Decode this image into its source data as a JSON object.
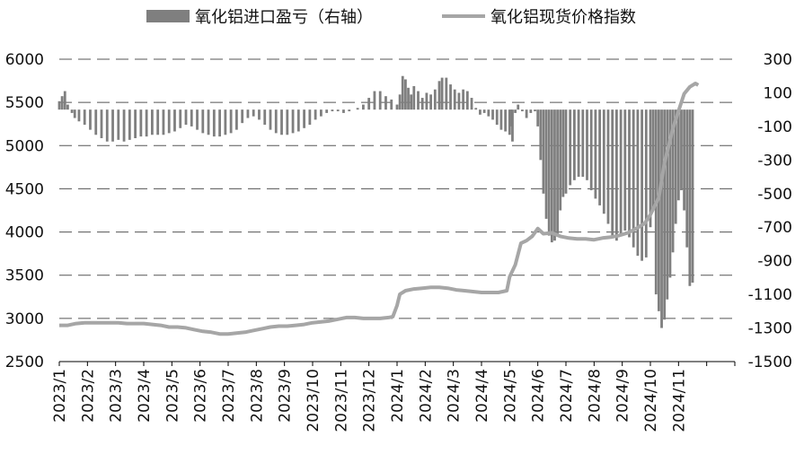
{
  "chart_data": {
    "type": "bar+line",
    "title": "",
    "legend": {
      "placement": "top",
      "items": [
        {
          "label": "氧化铝进口盈亏（右轴）",
          "marker": "bar",
          "color": "#7f7f7f"
        },
        {
          "label": "氧化铝现货价格指数",
          "marker": "line",
          "color": "#a6a6a6"
        }
      ]
    },
    "x_tick_labels": [
      "2023/1",
      "2023/2",
      "2023/3",
      "2023/4",
      "2023/5",
      "2023/6",
      "2023/7",
      "2023/8",
      "2023/9",
      "2023/10",
      "2023/11",
      "2023/12",
      "2024/1",
      "2024/2",
      "2024/3",
      "2024/4",
      "2024/5",
      "2024/6",
      "2024/7",
      "2024/8",
      "2024/9",
      "2024/10",
      "2024/11"
    ],
    "x_range": [
      "2023/1",
      "2024/12"
    ],
    "left_axis": {
      "min": 2500,
      "max": 6000,
      "ticks": [
        "2500",
        "3000",
        "3500",
        "4000",
        "4500",
        "5000",
        "5500",
        "6000"
      ]
    },
    "right_axis": {
      "min": -1500,
      "max": 300,
      "ticks": [
        "-1500",
        "-1300",
        "-1100",
        "-900",
        "-700",
        "-500",
        "-300",
        "-100",
        "100",
        "300"
      ]
    },
    "grid": "horizontal dashed",
    "series": [
      {
        "name": "氧化铝进口盈亏（右轴）",
        "type": "bar",
        "axis": "right",
        "color": "#7f7f7f",
        "points": [
          [
            0.0,
            50
          ],
          [
            0.1,
            80
          ],
          [
            0.2,
            110
          ],
          [
            0.3,
            30
          ],
          [
            0.45,
            -20
          ],
          [
            0.55,
            -50
          ],
          [
            0.7,
            -70
          ],
          [
            0.9,
            -90
          ],
          [
            1.1,
            -120
          ],
          [
            1.3,
            -150
          ],
          [
            1.5,
            -170
          ],
          [
            1.7,
            -190
          ],
          [
            1.9,
            -190
          ],
          [
            2.1,
            -180
          ],
          [
            2.3,
            -190
          ],
          [
            2.5,
            -180
          ],
          [
            2.7,
            -170
          ],
          [
            2.9,
            -160
          ],
          [
            3.1,
            -160
          ],
          [
            3.3,
            -150
          ],
          [
            3.5,
            -150
          ],
          [
            3.7,
            -150
          ],
          [
            3.9,
            -140
          ],
          [
            4.1,
            -130
          ],
          [
            4.3,
            -110
          ],
          [
            4.5,
            -90
          ],
          [
            4.7,
            -100
          ],
          [
            4.9,
            -120
          ],
          [
            5.1,
            -140
          ],
          [
            5.3,
            -150
          ],
          [
            5.5,
            -160
          ],
          [
            5.7,
            -160
          ],
          [
            5.9,
            -150
          ],
          [
            6.1,
            -140
          ],
          [
            6.3,
            -120
          ],
          [
            6.5,
            -80
          ],
          [
            6.7,
            -50
          ],
          [
            6.9,
            -40
          ],
          [
            7.1,
            -60
          ],
          [
            7.3,
            -90
          ],
          [
            7.5,
            -120
          ],
          [
            7.7,
            -140
          ],
          [
            7.9,
            -150
          ],
          [
            8.1,
            -150
          ],
          [
            8.3,
            -140
          ],
          [
            8.5,
            -130
          ],
          [
            8.7,
            -110
          ],
          [
            8.9,
            -90
          ],
          [
            9.1,
            -60
          ],
          [
            9.3,
            -40
          ],
          [
            9.5,
            -20
          ],
          [
            9.7,
            -10
          ],
          [
            9.9,
            -10
          ],
          [
            10.1,
            -20
          ],
          [
            10.3,
            -10
          ],
          [
            10.6,
            10
          ],
          [
            10.8,
            30
          ],
          [
            11.0,
            70
          ],
          [
            11.2,
            110
          ],
          [
            11.4,
            110
          ],
          [
            11.6,
            80
          ],
          [
            11.8,
            60
          ],
          [
            12.0,
            30
          ],
          [
            12.1,
            90
          ],
          [
            12.2,
            200
          ],
          [
            12.3,
            180
          ],
          [
            12.4,
            130
          ],
          [
            12.5,
            90
          ],
          [
            12.6,
            140
          ],
          [
            12.75,
            110
          ],
          [
            12.9,
            70
          ],
          [
            13.05,
            100
          ],
          [
            13.2,
            90
          ],
          [
            13.35,
            120
          ],
          [
            13.5,
            170
          ],
          [
            13.6,
            190
          ],
          [
            13.75,
            190
          ],
          [
            13.9,
            150
          ],
          [
            14.05,
            120
          ],
          [
            14.2,
            100
          ],
          [
            14.35,
            120
          ],
          [
            14.5,
            110
          ],
          [
            14.65,
            70
          ],
          [
            14.8,
            10
          ],
          [
            14.95,
            -30
          ],
          [
            15.1,
            -20
          ],
          [
            15.25,
            -40
          ],
          [
            15.4,
            -60
          ],
          [
            15.55,
            -90
          ],
          [
            15.7,
            -120
          ],
          [
            15.85,
            -130
          ],
          [
            16.0,
            -150
          ],
          [
            16.05,
            -100
          ],
          [
            16.1,
            -190
          ],
          [
            16.2,
            -20
          ],
          [
            16.3,
            30
          ],
          [
            16.45,
            -10
          ],
          [
            16.6,
            -50
          ],
          [
            16.75,
            -20
          ],
          [
            16.9,
            -10
          ],
          [
            17.0,
            -100
          ],
          [
            17.1,
            -300
          ],
          [
            17.2,
            -500
          ],
          [
            17.3,
            -650
          ],
          [
            17.4,
            -750
          ],
          [
            17.5,
            -790
          ],
          [
            17.6,
            -780
          ],
          [
            17.7,
            -750
          ],
          [
            17.8,
            -600
          ],
          [
            17.9,
            -520
          ],
          [
            18.0,
            -500
          ],
          [
            18.15,
            -450
          ],
          [
            18.3,
            -420
          ],
          [
            18.45,
            -400
          ],
          [
            18.6,
            -400
          ],
          [
            18.75,
            -420
          ],
          [
            18.9,
            -480
          ],
          [
            19.05,
            -530
          ],
          [
            19.2,
            -570
          ],
          [
            19.35,
            -620
          ],
          [
            19.5,
            -680
          ],
          [
            19.65,
            -760
          ],
          [
            19.8,
            -780
          ],
          [
            19.95,
            -740
          ],
          [
            20.1,
            -720
          ],
          [
            20.25,
            -760
          ],
          [
            20.4,
            -820
          ],
          [
            20.55,
            -870
          ],
          [
            20.7,
            -900
          ],
          [
            20.85,
            -880
          ],
          [
            21.0,
            -700
          ],
          [
            21.1,
            -600
          ],
          [
            21.2,
            -1100
          ],
          [
            21.3,
            -1200
          ],
          [
            21.4,
            -1300
          ],
          [
            21.5,
            -1250
          ],
          [
            21.6,
            -1130
          ],
          [
            21.7,
            -1000
          ],
          [
            21.8,
            -850
          ],
          [
            21.9,
            -680
          ],
          [
            22.0,
            -540
          ],
          [
            22.1,
            -480
          ],
          [
            22.2,
            -600
          ],
          [
            22.3,
            -820
          ],
          [
            22.4,
            -1050
          ],
          [
            22.5,
            -1030
          ]
        ]
      },
      {
        "name": "氧化铝现货价格指数",
        "type": "line",
        "axis": "left",
        "color": "#a6a6a6",
        "points": [
          [
            0.0,
            2920
          ],
          [
            0.3,
            2920
          ],
          [
            0.6,
            2940
          ],
          [
            0.9,
            2950
          ],
          [
            1.2,
            2950
          ],
          [
            1.5,
            2950
          ],
          [
            1.8,
            2950
          ],
          [
            2.1,
            2950
          ],
          [
            2.4,
            2940
          ],
          [
            2.7,
            2940
          ],
          [
            3.0,
            2940
          ],
          [
            3.3,
            2930
          ],
          [
            3.6,
            2920
          ],
          [
            3.9,
            2900
          ],
          [
            4.2,
            2900
          ],
          [
            4.5,
            2890
          ],
          [
            4.8,
            2870
          ],
          [
            5.1,
            2850
          ],
          [
            5.4,
            2840
          ],
          [
            5.7,
            2820
          ],
          [
            6.0,
            2820
          ],
          [
            6.3,
            2830
          ],
          [
            6.6,
            2840
          ],
          [
            6.9,
            2860
          ],
          [
            7.2,
            2880
          ],
          [
            7.5,
            2900
          ],
          [
            7.8,
            2910
          ],
          [
            8.1,
            2910
          ],
          [
            8.4,
            2920
          ],
          [
            8.7,
            2930
          ],
          [
            9.0,
            2950
          ],
          [
            9.3,
            2960
          ],
          [
            9.6,
            2970
          ],
          [
            9.9,
            2990
          ],
          [
            10.2,
            3010
          ],
          [
            10.5,
            3010
          ],
          [
            10.8,
            3000
          ],
          [
            11.1,
            3000
          ],
          [
            11.4,
            3000
          ],
          [
            11.7,
            3010
          ],
          [
            11.85,
            3020
          ],
          [
            12.0,
            3150
          ],
          [
            12.1,
            3280
          ],
          [
            12.3,
            3320
          ],
          [
            12.6,
            3340
          ],
          [
            12.9,
            3350
          ],
          [
            13.2,
            3360
          ],
          [
            13.5,
            3360
          ],
          [
            13.8,
            3350
          ],
          [
            14.1,
            3330
          ],
          [
            14.4,
            3320
          ],
          [
            14.7,
            3310
          ],
          [
            15.0,
            3300
          ],
          [
            15.3,
            3300
          ],
          [
            15.6,
            3300
          ],
          [
            15.9,
            3320
          ],
          [
            16.0,
            3480
          ],
          [
            16.2,
            3620
          ],
          [
            16.4,
            3870
          ],
          [
            16.6,
            3900
          ],
          [
            16.8,
            3950
          ],
          [
            17.0,
            4040
          ],
          [
            17.2,
            3980
          ],
          [
            17.5,
            3990
          ],
          [
            17.8,
            3950
          ],
          [
            18.1,
            3930
          ],
          [
            18.4,
            3920
          ],
          [
            18.7,
            3920
          ],
          [
            19.0,
            3910
          ],
          [
            19.3,
            3930
          ],
          [
            19.6,
            3940
          ],
          [
            19.9,
            3960
          ],
          [
            20.2,
            3990
          ],
          [
            20.5,
            4040
          ],
          [
            20.8,
            4100
          ],
          [
            21.0,
            4200
          ],
          [
            21.3,
            4400
          ],
          [
            21.5,
            4800
          ],
          [
            21.8,
            5200
          ],
          [
            22.0,
            5400
          ],
          [
            22.2,
            5600
          ],
          [
            22.4,
            5680
          ],
          [
            22.6,
            5720
          ],
          [
            22.7,
            5700
          ]
        ]
      }
    ]
  }
}
